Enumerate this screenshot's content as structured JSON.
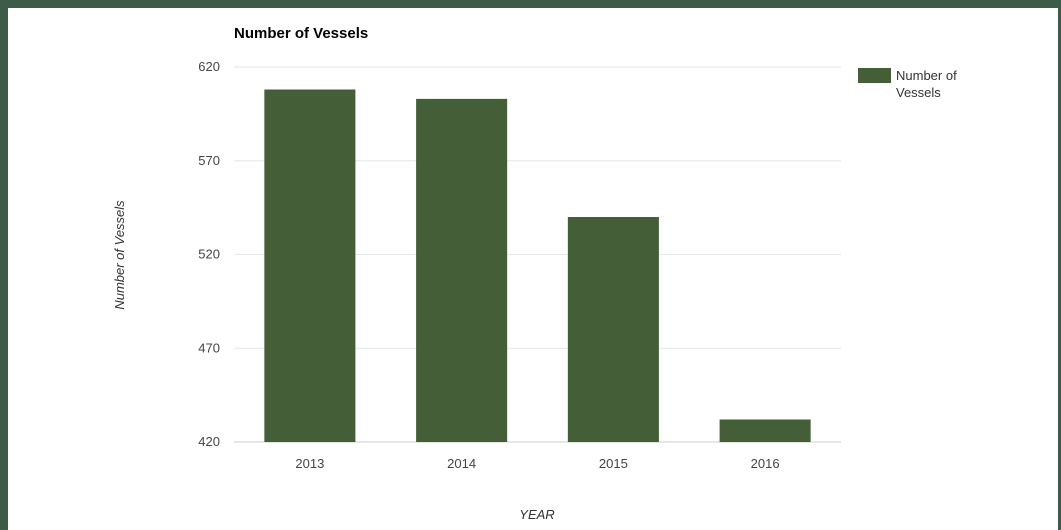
{
  "chart_data": {
    "type": "bar",
    "title": "Number of Vessels",
    "xlabel": "YEAR",
    "ylabel": "Number of Vessels",
    "categories": [
      "2013",
      "2014",
      "2015",
      "2016"
    ],
    "series": [
      {
        "name": "Number of Vessels",
        "legend_lines": [
          "Number of",
          "Vessels"
        ],
        "values": [
          608,
          603,
          540,
          432
        ]
      }
    ],
    "ylim": [
      420,
      620
    ],
    "yticks": [
      420,
      470,
      520,
      570,
      620
    ],
    "grid": true,
    "legend": "right",
    "colors": {
      "bar": "#445f37",
      "gridline": "#e6e6e6",
      "frame": "#3d5c48"
    }
  }
}
